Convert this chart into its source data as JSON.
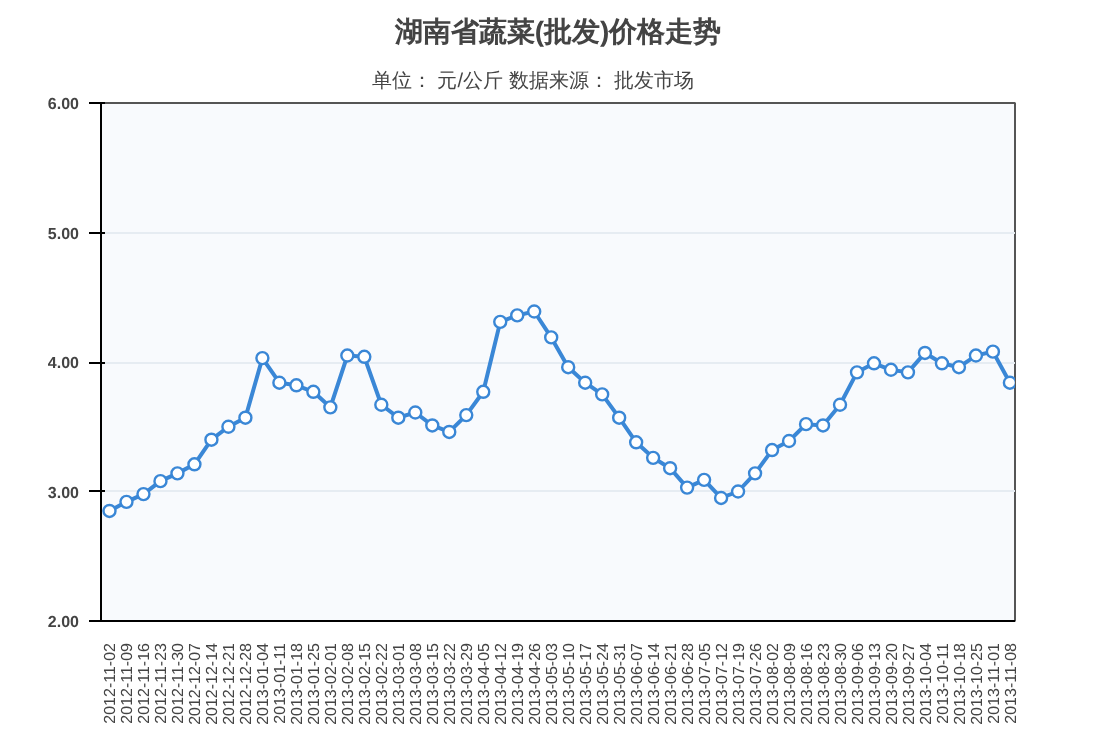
{
  "chart_data": {
    "type": "line",
    "title": "湖南省蔬菜(批发)价格走势",
    "subtitle": "单位：  元/公斤        数据来源：  批发市场",
    "categories": [
      "2012-11-02",
      "2012-11-09",
      "2012-11-16",
      "2012-11-23",
      "2012-11-30",
      "2012-12-07",
      "2012-12-14",
      "2012-12-21",
      "2012-12-28",
      "2013-01-04",
      "2013-01-11",
      "2013-01-18",
      "2013-01-25",
      "2013-02-01",
      "2013-02-08",
      "2013-02-15",
      "2013-02-22",
      "2013-03-01",
      "2013-03-08",
      "2013-03-15",
      "2013-03-22",
      "2013-03-29",
      "2013-04-05",
      "2013-04-12",
      "2013-04-19",
      "2013-04-26",
      "2013-05-03",
      "2013-05-10",
      "2013-05-17",
      "2013-05-24",
      "2013-05-31",
      "2013-06-07",
      "2013-06-14",
      "2013-06-21",
      "2013-06-28",
      "2013-07-05",
      "2013-07-12",
      "2013-07-19",
      "2013-07-26",
      "2013-08-02",
      "2013-08-09",
      "2013-08-16",
      "2013-08-23",
      "2013-08-30",
      "2013-09-06",
      "2013-09-13",
      "2013-09-20",
      "2013-09-27",
      "2013-10-04",
      "2013-10-11",
      "2013-10-18",
      "2013-10-25",
      "2013-11-01",
      "2013-11-08"
    ],
    "series": [
      {
        "color": "#3a87d6",
        "values": [
          2.85,
          2.92,
          2.98,
          3.08,
          3.14,
          3.21,
          3.4,
          3.5,
          3.57,
          4.03,
          3.84,
          3.82,
          3.77,
          3.65,
          4.05,
          4.04,
          3.67,
          3.57,
          3.61,
          3.51,
          3.46,
          3.59,
          3.77,
          4.31,
          4.36,
          4.39,
          4.19,
          3.96,
          3.84,
          3.75,
          3.57,
          3.38,
          3.26,
          3.18,
          3.03,
          3.09,
          2.95,
          3.0,
          3.14,
          3.32,
          3.39,
          3.52,
          3.51,
          3.67,
          3.92,
          3.99,
          3.94,
          3.92,
          4.07,
          3.99,
          3.96,
          4.05,
          4.08,
          3.84
        ]
      }
    ],
    "ylim": [
      2,
      6
    ],
    "yticks": [
      {
        "value": 2,
        "label": "2.00"
      },
      {
        "value": 3,
        "label": "3.00"
      },
      {
        "value": 4,
        "label": "4.00"
      },
      {
        "value": 5,
        "label": "5.00"
      },
      {
        "value": 6,
        "label": "6.00"
      }
    ],
    "grid": "y",
    "marker": "circle",
    "line_style": "solid"
  }
}
